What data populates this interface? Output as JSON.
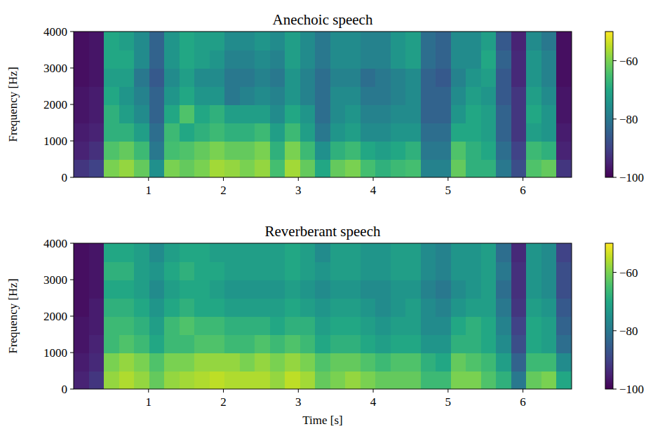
{
  "chart_data": [
    {
      "type": "heatmap",
      "title": "Anechoic speech",
      "y_label": "Frequency [Hz]",
      "xlim": [
        0,
        6.65
      ],
      "ylim": [
        0,
        4000
      ],
      "xticks": [
        1,
        2,
        3,
        4,
        5,
        6
      ],
      "yticks": [
        0,
        1000,
        2000,
        3000,
        4000
      ],
      "cells": [
        [
          -92,
          -90,
          -60,
          -58,
          -62,
          -75,
          -60,
          -62,
          -60,
          -57,
          -58,
          -60,
          -58,
          -65,
          -57,
          -62,
          -70,
          -62,
          -60,
          -65,
          -68,
          -66,
          -65,
          -78,
          -78,
          -62,
          -68,
          -68,
          -80,
          -88,
          -64,
          -62,
          -92
        ],
        [
          -95,
          -93,
          -64,
          -62,
          -66,
          -80,
          -65,
          -64,
          -62,
          -60,
          -62,
          -62,
          -60,
          -68,
          -60,
          -66,
          -75,
          -68,
          -66,
          -70,
          -72,
          -70,
          -68,
          -80,
          -80,
          -64,
          -68,
          -70,
          -82,
          -90,
          -66,
          -68,
          -95
        ],
        [
          -96,
          -95,
          -68,
          -68,
          -72,
          -82,
          -66,
          -70,
          -68,
          -66,
          -68,
          -68,
          -66,
          -72,
          -66,
          -72,
          -80,
          -74,
          -72,
          -76,
          -76,
          -74,
          -74,
          -82,
          -82,
          -70,
          -70,
          -72,
          -84,
          -92,
          -72,
          -74,
          -96
        ],
        [
          -97,
          -96,
          -68,
          -72,
          -76,
          -84,
          -70,
          -64,
          -70,
          -68,
          -72,
          -72,
          -72,
          -76,
          -70,
          -74,
          -82,
          -76,
          -74,
          -78,
          -78,
          -76,
          -76,
          -84,
          -84,
          -74,
          -70,
          -72,
          -84,
          -92,
          -70,
          -74,
          -97
        ],
        [
          -97,
          -96,
          -70,
          -74,
          -78,
          -84,
          -74,
          -70,
          -74,
          -74,
          -80,
          -78,
          -76,
          -78,
          -74,
          -78,
          -82,
          -76,
          -76,
          -80,
          -80,
          -78,
          -76,
          -84,
          -84,
          -76,
          -72,
          -74,
          -86,
          -92,
          -72,
          -76,
          -97
        ],
        [
          -98,
          -97,
          -72,
          -72,
          -80,
          -86,
          -76,
          -72,
          -76,
          -76,
          -80,
          -80,
          -78,
          -80,
          -74,
          -78,
          -82,
          -78,
          -78,
          -82,
          -80,
          -78,
          -76,
          -84,
          -86,
          -78,
          -74,
          -72,
          -86,
          -94,
          -74,
          -78,
          -98
        ],
        [
          -98,
          -97,
          -70,
          -70,
          -76,
          -84,
          -74,
          -70,
          -72,
          -74,
          -78,
          -78,
          -76,
          -78,
          -72,
          -76,
          -80,
          -76,
          -76,
          -78,
          -78,
          -74,
          -72,
          -82,
          -84,
          -76,
          -76,
          -70,
          -84,
          -94,
          -74,
          -78,
          -98
        ],
        [
          -98,
          -97,
          -70,
          -72,
          -76,
          -84,
          -74,
          -70,
          -72,
          -72,
          -76,
          -76,
          -74,
          -76,
          -72,
          -76,
          -80,
          -76,
          -76,
          -78,
          -78,
          -74,
          -72,
          -82,
          -84,
          -76,
          -76,
          -72,
          -86,
          -95,
          -76,
          -80,
          -98
        ]
      ],
      "colorbar": {
        "range": [
          -100,
          -50
        ],
        "ticks": [
          {
            "value": -100,
            "label": "−100"
          },
          {
            "value": -80,
            "label": "−80"
          },
          {
            "value": -60,
            "label": "−60"
          }
        ]
      }
    },
    {
      "type": "heatmap",
      "title": "Reverberant speech",
      "x_label": "Time [s]",
      "y_label": "Frequency [Hz]",
      "xlim": [
        0,
        6.65
      ],
      "ylim": [
        0,
        4000
      ],
      "xticks": [
        1,
        2,
        3,
        4,
        5,
        6
      ],
      "yticks": [
        0,
        1000,
        2000,
        3000,
        4000
      ],
      "cells": [
        [
          -95,
          -92,
          -58,
          -56,
          -58,
          -62,
          -58,
          -57,
          -56,
          -55,
          -56,
          -56,
          -56,
          -58,
          -55,
          -57,
          -62,
          -60,
          -58,
          -60,
          -62,
          -62,
          -62,
          -66,
          -66,
          -60,
          -60,
          -64,
          -68,
          -80,
          -62,
          -60,
          -70
        ],
        [
          -96,
          -94,
          -60,
          -58,
          -60,
          -64,
          -60,
          -60,
          -58,
          -58,
          -58,
          -60,
          -58,
          -60,
          -58,
          -60,
          -64,
          -62,
          -62,
          -64,
          -66,
          -64,
          -64,
          -68,
          -70,
          -62,
          -64,
          -66,
          -72,
          -84,
          -66,
          -66,
          -76
        ],
        [
          -97,
          -95,
          -66,
          -64,
          -66,
          -70,
          -66,
          -66,
          -64,
          -64,
          -66,
          -66,
          -64,
          -66,
          -64,
          -66,
          -70,
          -68,
          -68,
          -70,
          -72,
          -70,
          -70,
          -74,
          -74,
          -68,
          -68,
          -70,
          -76,
          -88,
          -70,
          -72,
          -82
        ],
        [
          -97,
          -96,
          -66,
          -66,
          -68,
          -72,
          -66,
          -64,
          -66,
          -66,
          -68,
          -68,
          -68,
          -70,
          -68,
          -68,
          -72,
          -70,
          -70,
          -72,
          -74,
          -72,
          -72,
          -76,
          -76,
          -70,
          -68,
          -70,
          -78,
          -90,
          -70,
          -72,
          -84
        ],
        [
          -98,
          -96,
          -68,
          -68,
          -70,
          -74,
          -70,
          -68,
          -70,
          -70,
          -72,
          -72,
          -72,
          -72,
          -70,
          -72,
          -74,
          -72,
          -72,
          -74,
          -76,
          -74,
          -72,
          -76,
          -78,
          -74,
          -72,
          -72,
          -80,
          -92,
          -72,
          -74,
          -86
        ],
        [
          -98,
          -97,
          -70,
          -70,
          -72,
          -76,
          -72,
          -70,
          -70,
          -72,
          -74,
          -74,
          -74,
          -74,
          -72,
          -74,
          -76,
          -74,
          -74,
          -76,
          -76,
          -74,
          -74,
          -78,
          -80,
          -76,
          -74,
          -72,
          -82,
          -93,
          -74,
          -76,
          -88
        ],
        [
          -98,
          -97,
          -68,
          -68,
          -72,
          -74,
          -70,
          -68,
          -70,
          -70,
          -72,
          -72,
          -72,
          -72,
          -70,
          -72,
          -74,
          -72,
          -72,
          -74,
          -74,
          -72,
          -72,
          -76,
          -78,
          -74,
          -74,
          -72,
          -80,
          -93,
          -74,
          -76,
          -88
        ],
        [
          -98,
          -97,
          -70,
          -70,
          -72,
          -76,
          -72,
          -70,
          -70,
          -72,
          -72,
          -72,
          -72,
          -72,
          -70,
          -72,
          -76,
          -72,
          -72,
          -74,
          -74,
          -72,
          -72,
          -76,
          -78,
          -74,
          -74,
          -72,
          -82,
          -94,
          -74,
          -76,
          -90
        ]
      ],
      "colorbar": {
        "range": [
          -100,
          -50
        ],
        "ticks": [
          {
            "value": -100,
            "label": "−100"
          },
          {
            "value": -80,
            "label": "−80"
          },
          {
            "value": -60,
            "label": "−60"
          }
        ]
      }
    }
  ]
}
